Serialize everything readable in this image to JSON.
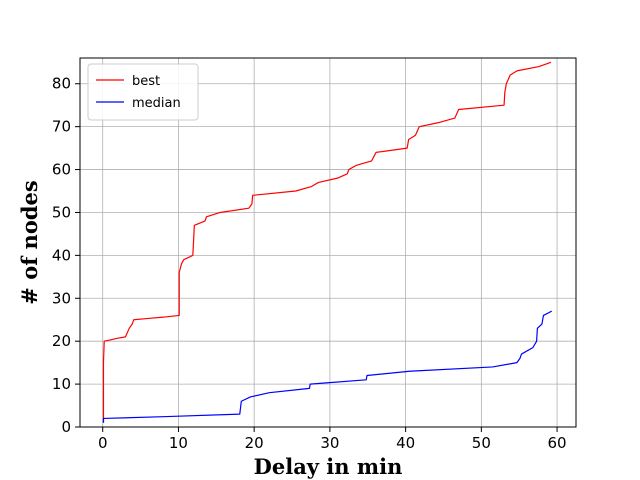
{
  "chart_data": {
    "type": "line",
    "title": "",
    "xlabel": "Delay in min",
    "ylabel": "# of nodes",
    "xlim": [
      -3.0,
      62.5
    ],
    "ylim": [
      0,
      86
    ],
    "xticks": [
      0,
      10,
      20,
      30,
      40,
      50,
      60
    ],
    "yticks": [
      0,
      10,
      20,
      30,
      40,
      50,
      60,
      70,
      80
    ],
    "grid": true,
    "legend_position": "top-left",
    "series": [
      {
        "name": "best",
        "color": "#ff0000",
        "points": [
          [
            0.1,
            1
          ],
          [
            0.1,
            15
          ],
          [
            0.2,
            20
          ],
          [
            1.0,
            20.3
          ],
          [
            2.0,
            20.7
          ],
          [
            3.0,
            21
          ],
          [
            3.5,
            23
          ],
          [
            3.9,
            24
          ],
          [
            4.1,
            25
          ],
          [
            6.0,
            25.3
          ],
          [
            8.0,
            25.6
          ],
          [
            10.1,
            26
          ],
          [
            10.1,
            36
          ],
          [
            10.4,
            38
          ],
          [
            10.7,
            39
          ],
          [
            11.9,
            40
          ],
          [
            12.1,
            47
          ],
          [
            13.5,
            48
          ],
          [
            13.7,
            49
          ],
          [
            15.5,
            50
          ],
          [
            19.3,
            51
          ],
          [
            19.7,
            52
          ],
          [
            19.8,
            54
          ],
          [
            25.5,
            55
          ],
          [
            27.5,
            56
          ],
          [
            28.5,
            57
          ],
          [
            31.0,
            58
          ],
          [
            32.3,
            59
          ],
          [
            32.5,
            60
          ],
          [
            33.5,
            61
          ],
          [
            35.5,
            62
          ],
          [
            35.8,
            63
          ],
          [
            36.1,
            64
          ],
          [
            40.2,
            65
          ],
          [
            40.4,
            67
          ],
          [
            41.3,
            68
          ],
          [
            41.8,
            70
          ],
          [
            44.5,
            71
          ],
          [
            46.5,
            72
          ],
          [
            47.0,
            74
          ],
          [
            53.0,
            75
          ],
          [
            53.1,
            78
          ],
          [
            53.3,
            80
          ],
          [
            53.8,
            82
          ],
          [
            54.7,
            83
          ],
          [
            57.6,
            84
          ],
          [
            59.2,
            85
          ]
        ]
      },
      {
        "name": "median",
        "color": "#0000ff",
        "points": [
          [
            0.1,
            1
          ],
          [
            0.1,
            2
          ],
          [
            8.0,
            2.4
          ],
          [
            18.1,
            3
          ],
          [
            18.3,
            6
          ],
          [
            19.5,
            7
          ],
          [
            22.0,
            8
          ],
          [
            27.3,
            9
          ],
          [
            27.4,
            10
          ],
          [
            34.8,
            11
          ],
          [
            34.9,
            12
          ],
          [
            40.5,
            13
          ],
          [
            51.5,
            14
          ],
          [
            54.7,
            15
          ],
          [
            55.1,
            16
          ],
          [
            55.3,
            17
          ],
          [
            56.8,
            18.5
          ],
          [
            57.3,
            20
          ],
          [
            57.4,
            23
          ],
          [
            58.0,
            24
          ],
          [
            58.2,
            26
          ],
          [
            59.3,
            27
          ]
        ]
      }
    ]
  }
}
